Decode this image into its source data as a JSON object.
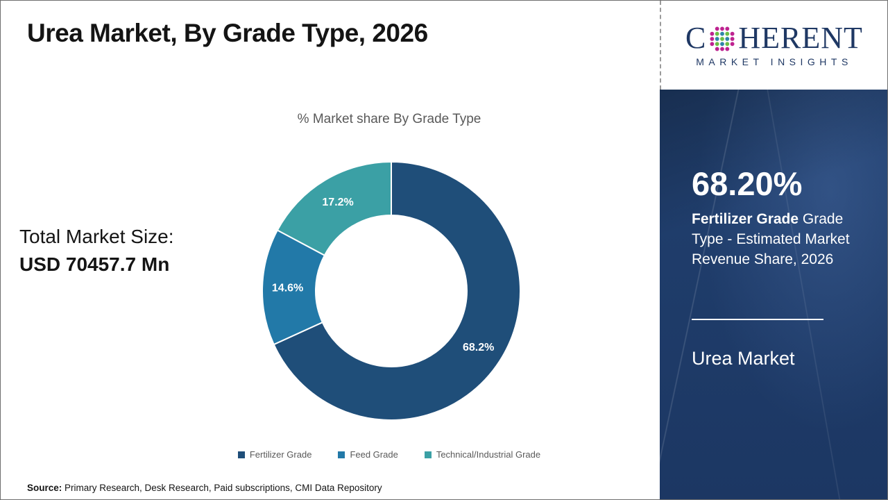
{
  "title": "Urea Market, By Grade Type, 2026",
  "logo": {
    "brand_first_letter": "C",
    "brand_rest": "HERENT",
    "tagline": "MARKET INSIGHTS",
    "brand_color": "#1F3864"
  },
  "stats": {
    "total_label": "Total Market Size:",
    "total_value": "USD 70457.7 Mn"
  },
  "chart_data": {
    "type": "pie",
    "subtype": "donut",
    "title": "% Market share By Grade Type",
    "categories": [
      "Fertilizer Grade",
      "Feed Grade",
      "Technical/Industrial Grade"
    ],
    "values": [
      68.2,
      14.6,
      17.2
    ],
    "data_labels": [
      "68.2%",
      "14.6%",
      "17.2%"
    ],
    "colors": [
      "#1F4E79",
      "#2279A8",
      "#3BA0A5"
    ],
    "start_angle_deg": 0,
    "direction": "clockwise",
    "inner_radius_ratio": 0.586,
    "legend_position": "bottom"
  },
  "sidebar": {
    "highlight_value": "68.20%",
    "highlight_segment": "Fertilizer Grade",
    "highlight_rest": " Grade Type - Estimated Market Revenue Share, 2026",
    "market_name": "Urea Market",
    "panel_color": "#1E3A66"
  },
  "source": {
    "label": "Source:",
    "text": " Primary Research, Desk Research, Paid subscriptions, CMI Data Repository"
  }
}
